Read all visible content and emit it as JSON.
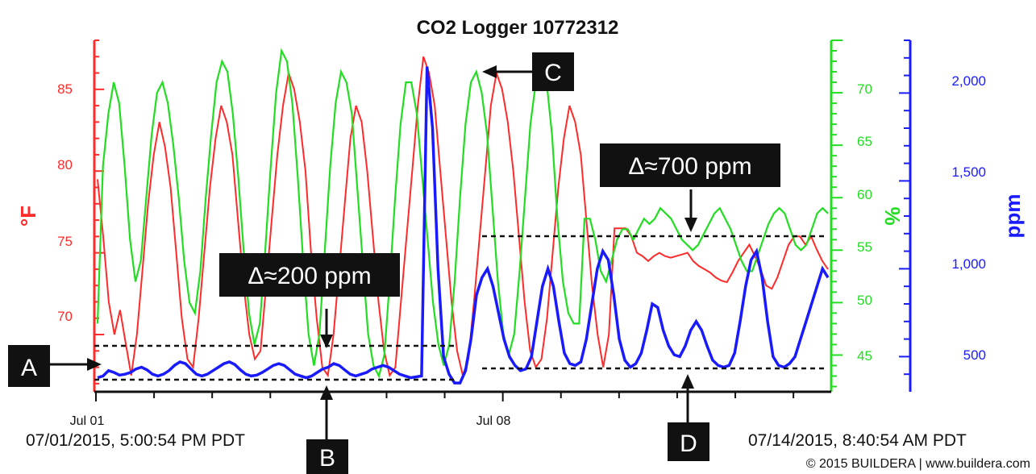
{
  "chart_data": {
    "type": "line",
    "title": "CO2 Logger 10772312",
    "x_range": [
      "07/01/2015, 5:00:54 PM PDT",
      "07/14/2015, 8:40:54 AM PDT"
    ],
    "x_ticks": [
      "Jul 01",
      "Jul 08"
    ],
    "start_label": "07/01/2015, 5:00:54 PM PDT",
    "end_label": "07/14/2015, 8:40:54 AM PDT",
    "axes": {
      "temperature": {
        "unit": "°F",
        "ticks": [
          "70",
          "75",
          "80",
          "85"
        ],
        "ylim": [
          66.5,
          88
        ],
        "color": "#ff2a2a"
      },
      "humidity": {
        "unit": "%",
        "ticks": [
          "45",
          "50",
          "55",
          "60",
          "65",
          "70"
        ],
        "ylim": [
          41.5,
          75
        ],
        "color": "#22dd22"
      },
      "co2": {
        "unit": "ppm",
        "ticks": [
          "500",
          "1,000",
          "1,500",
          "2,000"
        ],
        "ylim": [
          300,
          2300
        ],
        "color": "#1a1aff"
      }
    },
    "series": [
      {
        "axis": "temperature",
        "values": [
          79.5,
          76,
          72,
          70,
          71.5,
          69.5,
          67.5,
          70,
          74,
          78,
          81,
          83,
          81.5,
          79,
          75,
          71,
          68.5,
          68,
          71,
          75,
          79,
          82,
          84,
          83,
          81,
          77,
          73,
          70,
          68.5,
          69,
          73,
          77,
          81,
          84,
          86,
          85,
          83,
          80,
          75,
          71,
          68,
          67.5,
          70,
          74,
          78,
          82,
          84,
          83,
          80,
          76,
          72,
          69,
          67.5,
          68,
          72,
          76,
          80,
          84,
          87,
          86,
          84,
          80,
          76,
          72,
          69,
          67.5,
          68.5,
          72,
          76,
          80,
          84,
          86,
          85,
          83,
          80,
          76,
          72,
          69,
          68,
          68.5,
          71,
          75,
          79,
          82,
          84,
          83,
          81,
          77,
          73,
          70,
          68,
          70,
          76.5,
          76.5,
          76.5,
          76,
          75,
          74.8,
          74.5,
          74.8,
          75,
          74.8,
          74.7,
          74.8,
          74.9,
          75,
          74.5,
          74.2,
          74,
          73.8,
          73.5,
          73.3,
          73.2,
          73.8,
          74.5,
          75,
          75.5,
          74.8,
          74,
          73,
          72.8,
          73.5,
          74.5,
          75.5,
          76,
          76,
          75.5,
          76,
          75.2,
          74.5,
          74
        ]
      },
      {
        "axis": "humidity",
        "values": [
          48,
          63,
          68,
          71,
          69,
          63,
          56,
          52,
          54,
          60,
          66,
          70,
          71,
          69,
          65,
          60,
          54,
          50,
          49,
          53,
          60,
          66,
          71,
          73,
          72,
          68,
          62,
          55,
          49,
          46,
          48,
          55,
          63,
          70,
          74,
          73,
          69,
          62,
          54,
          47,
          44,
          47,
          55,
          63,
          69,
          72,
          71,
          68,
          61,
          54,
          47,
          44,
          43,
          45,
          52,
          60,
          67,
          71,
          71,
          68,
          62,
          56,
          50,
          46,
          44,
          46,
          52,
          60,
          67,
          71,
          72,
          70,
          66,
          59,
          52,
          47,
          45,
          47,
          53,
          60,
          67,
          71,
          73,
          71,
          66,
          58,
          52,
          49,
          48,
          48,
          58,
          58,
          56,
          53,
          52,
          54,
          56,
          57,
          57,
          56,
          57,
          58,
          57.5,
          58,
          59,
          58.5,
          58,
          57,
          56,
          55.5,
          55,
          55.5,
          56.5,
          57.5,
          58.5,
          59,
          58,
          57,
          55.5,
          54,
          53,
          53,
          54.5,
          56,
          57.5,
          58.5,
          59,
          58.5,
          57,
          55.5,
          55,
          55.5,
          57,
          58.5,
          59,
          58.5
        ]
      },
      {
        "axis": "co2",
        "values": [
          380,
          390,
          420,
          410,
          395,
          400,
          410,
          430,
          440,
          425,
          400,
          390,
          400,
          420,
          450,
          470,
          460,
          430,
          400,
          390,
          400,
          420,
          440,
          460,
          470,
          455,
          425,
          400,
          390,
          395,
          410,
          430,
          450,
          460,
          450,
          425,
          400,
          390,
          380,
          390,
          410,
          430,
          440,
          460,
          450,
          425,
          400,
          390,
          400,
          410,
          430,
          440,
          450,
          440,
          420,
          400,
          390,
          380,
          385,
          390,
          2150,
          1800,
          1000,
          500,
          400,
          350,
          350,
          420,
          600,
          850,
          950,
          1000,
          900,
          750,
          600,
          500,
          450,
          420,
          430,
          500,
          700,
          900,
          1000,
          900,
          700,
          520,
          460,
          450,
          470,
          600,
          800,
          1000,
          1100,
          1050,
          850,
          600,
          480,
          440,
          460,
          520,
          650,
          800,
          780,
          650,
          560,
          510,
          500,
          560,
          650,
          700,
          650,
          560,
          480,
          450,
          440,
          450,
          520,
          700,
          900,
          1050,
          1100,
          950,
          700,
          500,
          450,
          440,
          460,
          500,
          600,
          700,
          800,
          900,
          1000,
          950
        ]
      }
    ],
    "reference_lines": [
      {
        "axis": "co2",
        "value": 590,
        "x_from": "Jul 01",
        "x_to": "C"
      },
      {
        "axis": "co2",
        "value": 390,
        "x_from": "Jul 01",
        "x_to": "C"
      },
      {
        "axis": "co2",
        "value": 1140,
        "x_from": "C",
        "x_to": "07/14/2015, 8:40:54 AM PDT"
      },
      {
        "axis": "co2",
        "value": 440,
        "x_from": "C",
        "x_to": "07/14/2015, 8:40:54 AM PDT"
      }
    ],
    "annotations": [
      {
        "id": "A",
        "text": "A"
      },
      {
        "id": "B",
        "text": "B"
      },
      {
        "id": "C",
        "text": "C"
      },
      {
        "id": "D",
        "text": "D"
      },
      {
        "id": "delta-200",
        "text": "Δ≈200 ppm"
      },
      {
        "id": "delta-700",
        "text": "Δ≈700 ppm"
      }
    ],
    "grid": false,
    "legend": "none"
  },
  "copyright": "© 2015 BUILDERA | www.buildera.com"
}
